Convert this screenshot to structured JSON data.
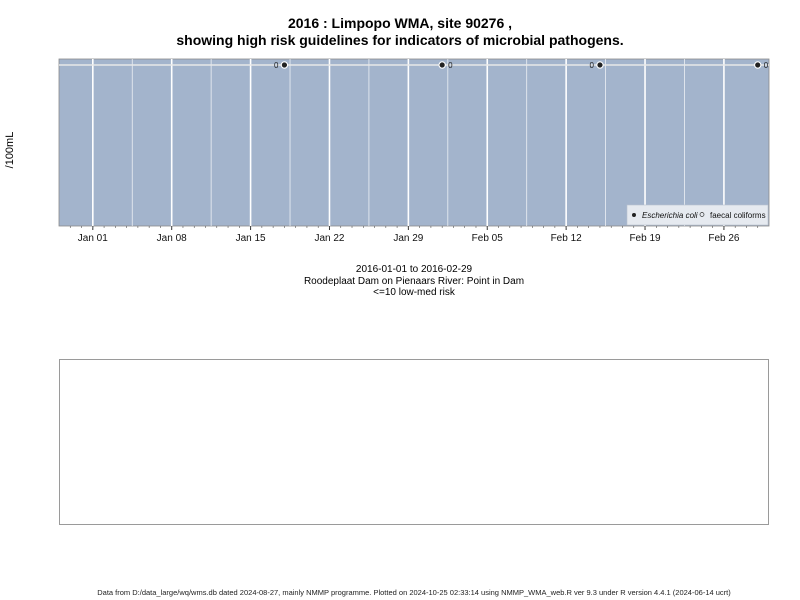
{
  "title_line1": "2016 : Limpopo WMA, site 90276 ,",
  "title_line2": "showing high risk guidelines for indicators of microbial pathogens.",
  "ylabel": "/100mL",
  "caption": {
    "line1": "2016-01-01 to 2016-02-29",
    "line2": "Roodeplaat Dam on Pienaars River: Point in Dam",
    "line3": "<=10 low-med risk"
  },
  "footer": "Data from D:/data_large/wq/wms.db dated 2024-08-27, mainly NMMP programme. Plotted on 2024-10-25 02:33:14 using NMMP_WMA_web.R ver 9.3 under R version 4.4.1 (2024-06-14 ucrt)",
  "colors": {
    "panel_bg": "#a3b4cc",
    "grid": "#ffffff",
    "point": "#222222"
  },
  "chart_data": {
    "type": "scatter",
    "xlabel": "",
    "ylabel": "/100mL",
    "xlim": [
      "2015-12-29",
      "2016-03-01"
    ],
    "x_ticks": [
      "Jan 01",
      "Jan 08",
      "Jan 15",
      "Jan 22",
      "Jan 29",
      "Feb 05",
      "Feb 12",
      "Feb 19",
      "Feb 26"
    ],
    "legend_position": "bottom-right",
    "series": [
      {
        "name": "Escherichia coli",
        "marker": "filled",
        "points": [
          {
            "x": "2016-01-18",
            "y": 0,
            "label": "0"
          },
          {
            "x": "2016-02-01",
            "y": 0,
            "label": "0"
          },
          {
            "x": "2016-02-15",
            "y": 0,
            "label": "0"
          },
          {
            "x": "2016-02-29",
            "y": 0,
            "label": "0"
          }
        ]
      },
      {
        "name": "faecal coliforms",
        "marker": "open",
        "points": [
          {
            "x": "2016-01-18",
            "y": 0
          },
          {
            "x": "2016-02-01",
            "y": 0
          },
          {
            "x": "2016-02-15",
            "y": 0
          },
          {
            "x": "2016-02-29",
            "y": 0
          }
        ]
      }
    ]
  }
}
